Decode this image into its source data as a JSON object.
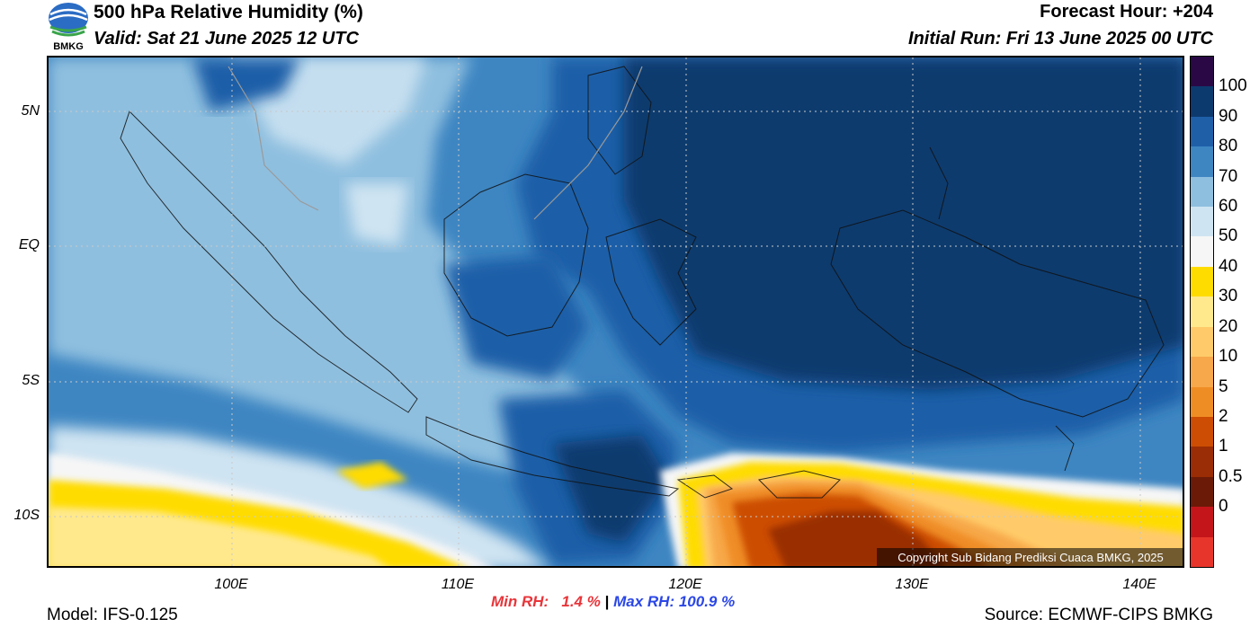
{
  "header": {
    "logo_text": "BMKG",
    "title": "500 hPa Relative Humidity (%)",
    "valid": "Valid: Sat 21 June 2025 12 UTC",
    "forecast_hour": "Forecast Hour: +204",
    "initial_run": "Initial Run: Fri 13 June 2025 00 UTC"
  },
  "map": {
    "lat_labels": [
      "5N",
      "EQ",
      "5S",
      "10S"
    ],
    "lon_labels": [
      "100E",
      "110E",
      "120E",
      "130E",
      "140E"
    ],
    "copyright": "Copyright Sub Bidang Prediksi Cuaca BMKG, 2025"
  },
  "colorbar": {
    "labels": [
      "100",
      "90",
      "80",
      "70",
      "60",
      "50",
      "40",
      "30",
      "20",
      "10",
      "5",
      "2",
      "1",
      "0.5",
      "0"
    ],
    "colors": [
      "#2a0845",
      "#0d3a6e",
      "#1f5fa8",
      "#3e86c2",
      "#8fbfdf",
      "#cfe4f2",
      "#f6f6f6",
      "#ffdc00",
      "#ffe98c",
      "#ffcb6a",
      "#f7a84a",
      "#ef8d25",
      "#cc4d03",
      "#9a2d05",
      "#6b1a08",
      "#c4151a",
      "#e8352b"
    ]
  },
  "stats": {
    "min": "Min RH:   1.4 %",
    "separator": "|",
    "max": "Max RH: 100.9 %"
  },
  "footer": {
    "model": "Model: IFS-0.125",
    "source": "Source: ECMWF-CIPS BMKG"
  }
}
